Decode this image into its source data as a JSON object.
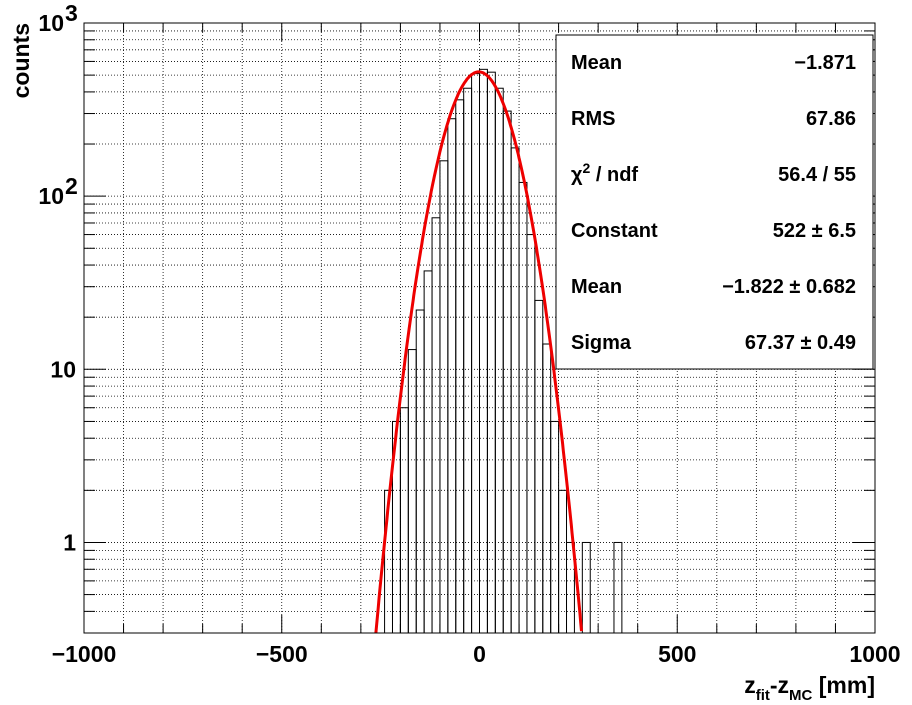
{
  "chart_data": {
    "type": "histogram",
    "xlabel": {
      "main": "z",
      "sub1": "fit",
      "mid": "-z",
      "sub2": "MC",
      "unit": " [mm]"
    },
    "ylabel": "counts",
    "xlim": [
      -1000,
      1000
    ],
    "ylim": [
      0.3,
      1000
    ],
    "yscale": "log",
    "grid": true,
    "x_ticks": [
      {
        "value": -1000,
        "label": "−1000"
      },
      {
        "value": -500,
        "label": "−500"
      },
      {
        "value": 0,
        "label": "0"
      },
      {
        "value": 500,
        "label": "500"
      },
      {
        "value": 1000,
        "label": "1000"
      }
    ],
    "y_ticks": [
      {
        "value": 1,
        "label": "1"
      },
      {
        "value": 10,
        "label": "10"
      },
      {
        "value": 100,
        "label": "10",
        "exponent": "2"
      },
      {
        "value": 1000,
        "label": "10",
        "exponent": "3"
      }
    ],
    "bin_width": 20,
    "bins_low_edge": [
      -260,
      -240,
      -220,
      -200,
      -180,
      -160,
      -140,
      -120,
      -100,
      -80,
      -60,
      -40,
      -20,
      0,
      20,
      40,
      60,
      80,
      100,
      120,
      140,
      160,
      180,
      200,
      220,
      240,
      260,
      280,
      300,
      320,
      340,
      360
    ],
    "counts": [
      0,
      2,
      5,
      6,
      13,
      22,
      37,
      75,
      160,
      280,
      360,
      420,
      510,
      540,
      520,
      420,
      310,
      190,
      120,
      60,
      25,
      14,
      5,
      2,
      1,
      0,
      1,
      0,
      0,
      0,
      1,
      0
    ],
    "fit": {
      "type": "gaus",
      "color": "#ee0000",
      "constant": 522,
      "mean": -1.822,
      "sigma": 67.37
    },
    "stats_box": {
      "position": "top-right",
      "rows": [
        {
          "label": "Mean",
          "value": "−1.871"
        },
        {
          "label": "RMS",
          "value": "67.86"
        },
        {
          "label": "χ",
          "label_sup": "2",
          "label_rest": " / ndf",
          "value": "56.4 / 55"
        },
        {
          "label": "Constant",
          "value": "522 ± 6.5"
        },
        {
          "label": "Mean",
          "value": "−1.822 ± 0.682"
        },
        {
          "label": "Sigma",
          "value": "67.37 ± 0.49"
        }
      ]
    }
  }
}
